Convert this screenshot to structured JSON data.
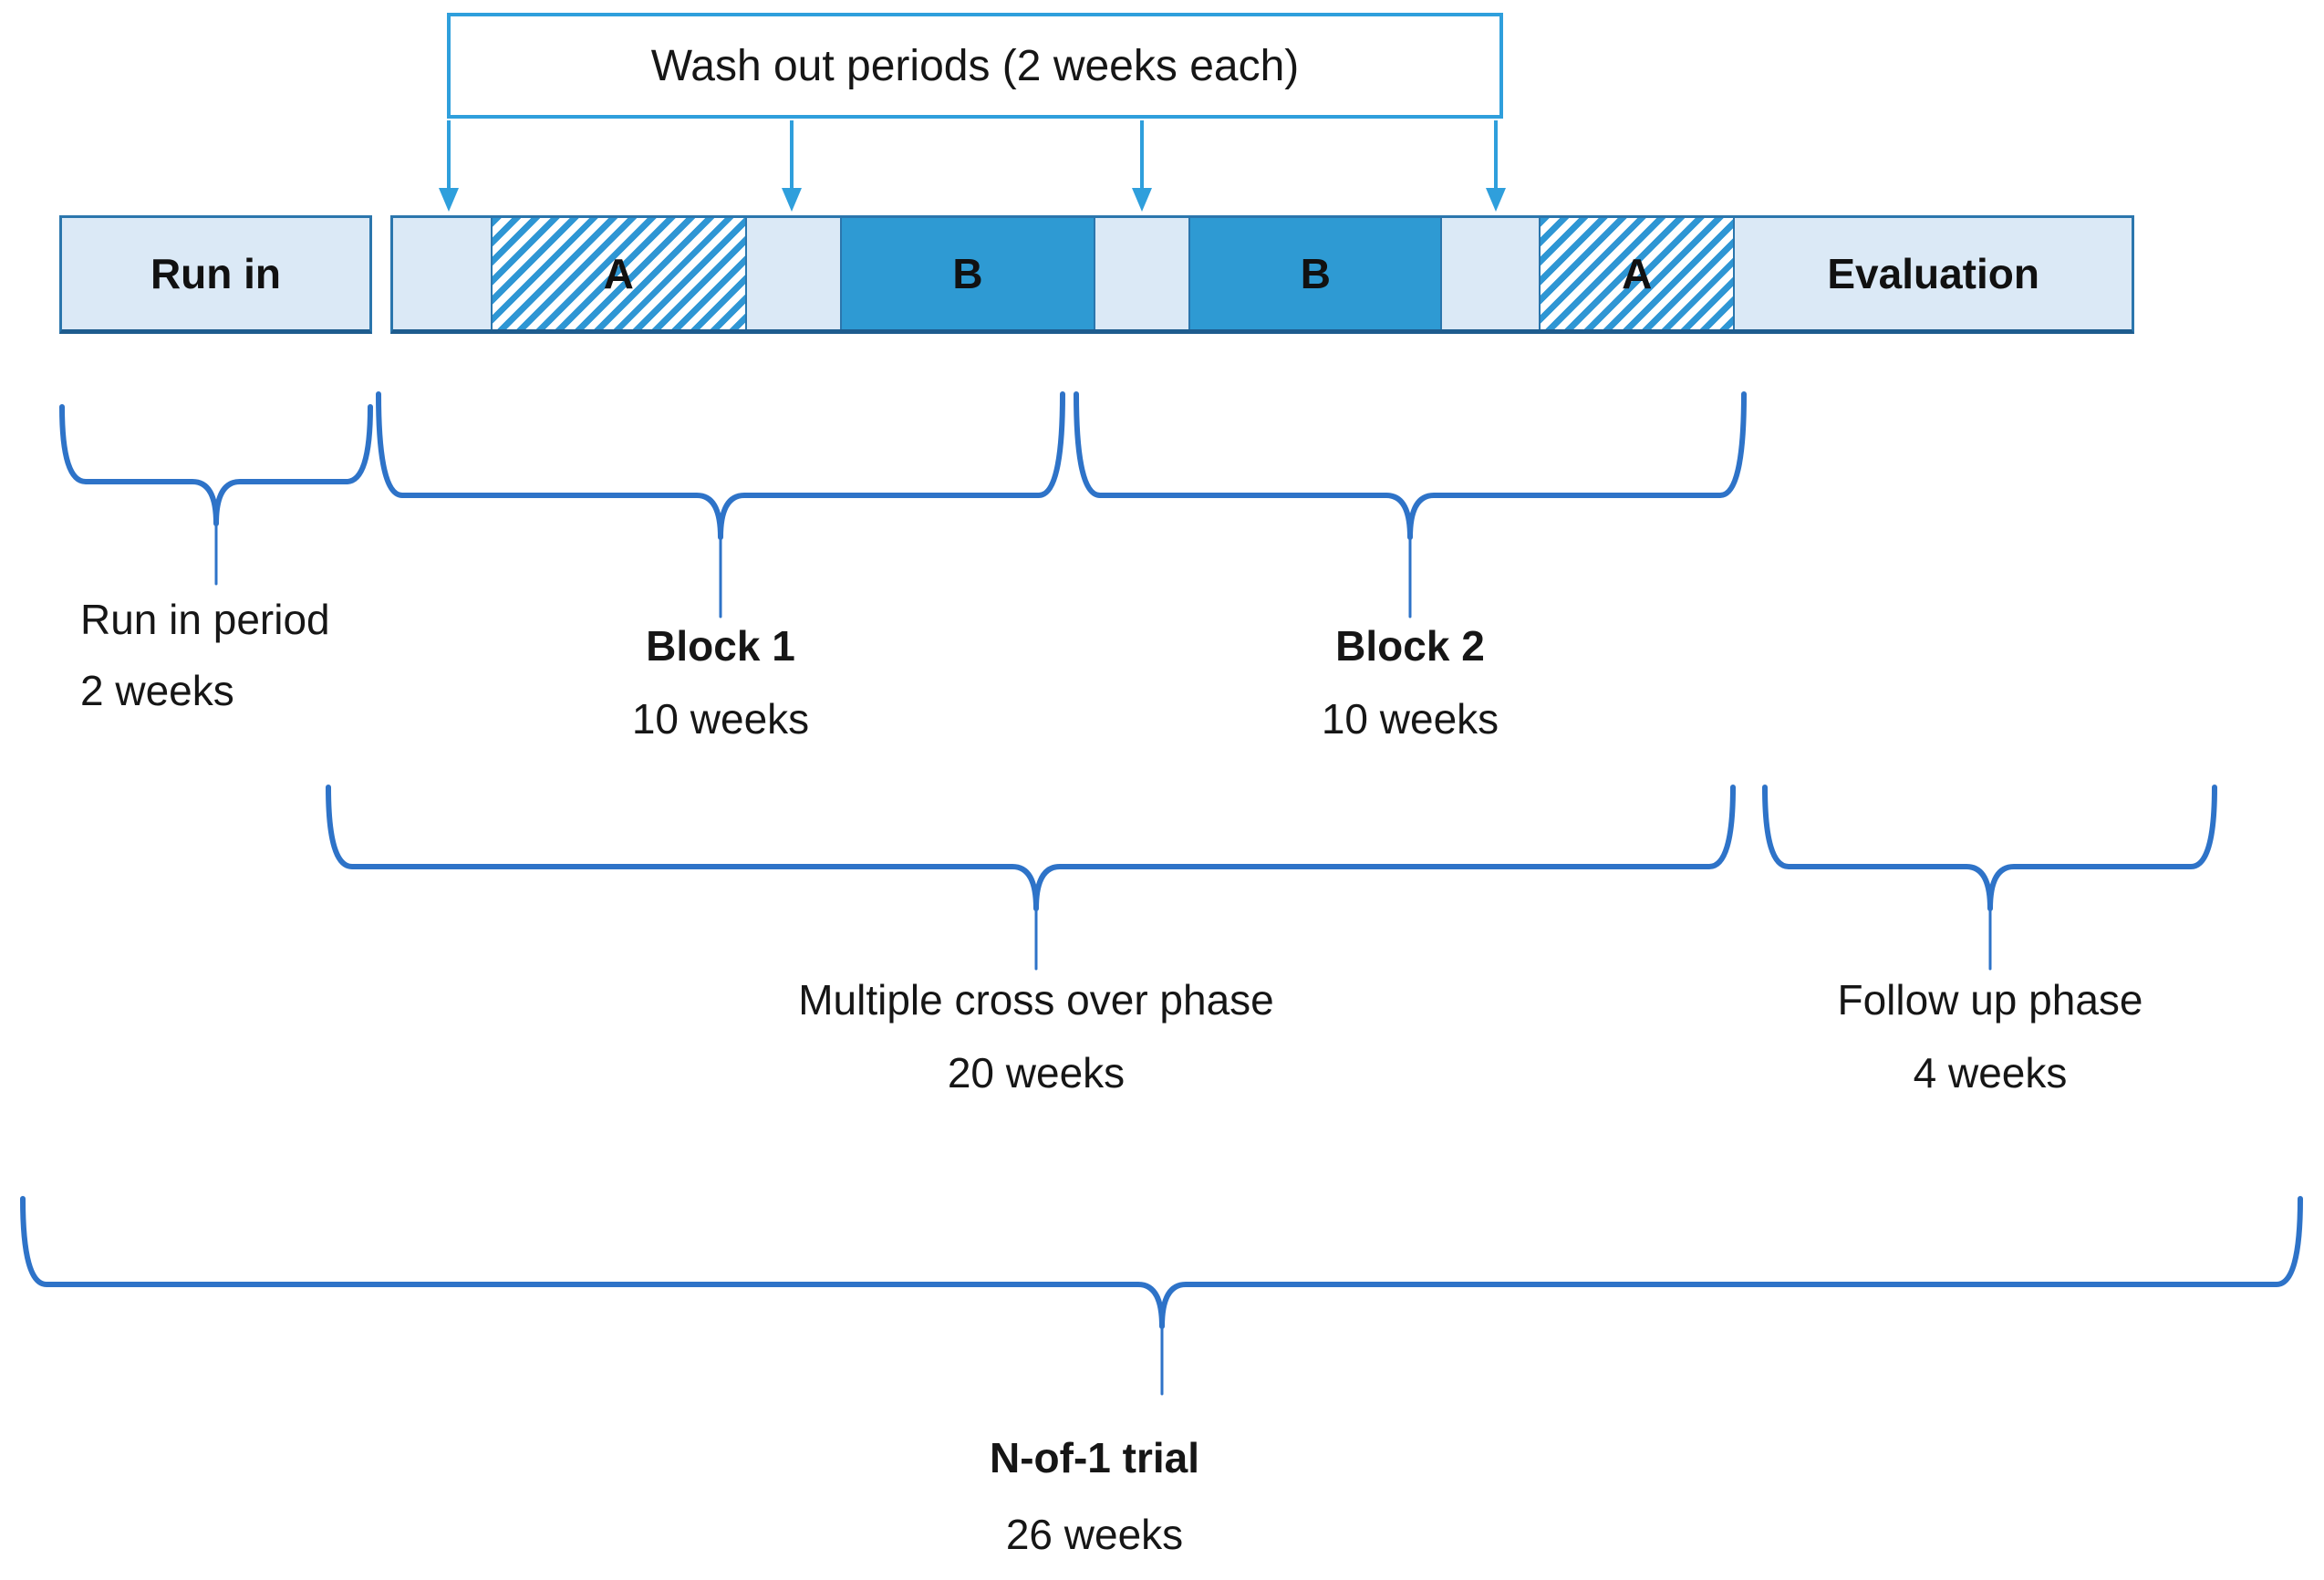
{
  "washout_box": {
    "label": "Wash out periods (2 weeks each)"
  },
  "timeline": {
    "run_in": {
      "label": "Run in"
    },
    "segments": [
      {
        "label": "",
        "type": "washout"
      },
      {
        "label": "A",
        "type": "treatment-a"
      },
      {
        "label": "",
        "type": "washout"
      },
      {
        "label": "B",
        "type": "treatment-b"
      },
      {
        "label": "",
        "type": "washout"
      },
      {
        "label": "B",
        "type": "treatment-b"
      },
      {
        "label": "",
        "type": "washout"
      },
      {
        "label": "A",
        "type": "treatment-a"
      },
      {
        "label": "Evaluation",
        "type": "evaluation"
      }
    ]
  },
  "annotations": {
    "run_in_period": {
      "title": "Run in period",
      "duration": "2 weeks"
    },
    "block_1": {
      "title": "Block 1",
      "duration": "10 weeks"
    },
    "block_2": {
      "title": "Block 2",
      "duration": "10 weeks"
    },
    "crossover": {
      "title": "Multiple cross over phase",
      "duration": "20 weeks"
    },
    "follow_up": {
      "title": "Follow up phase",
      "duration": "4 weeks"
    },
    "trial": {
      "title": "N-of-1 trial",
      "duration": "26 weeks"
    }
  },
  "colors": {
    "light_fill": "#dbe9f6",
    "solid_fill": "#2e9ad3",
    "bar_border": "#2b76ad",
    "bar_border_dark": "#1e5c8e",
    "hatch_stripe": "#2e96d4",
    "arrow_blue": "#2f9fdc",
    "brace_blue": "#2e73c8",
    "text_color": "#161616"
  }
}
